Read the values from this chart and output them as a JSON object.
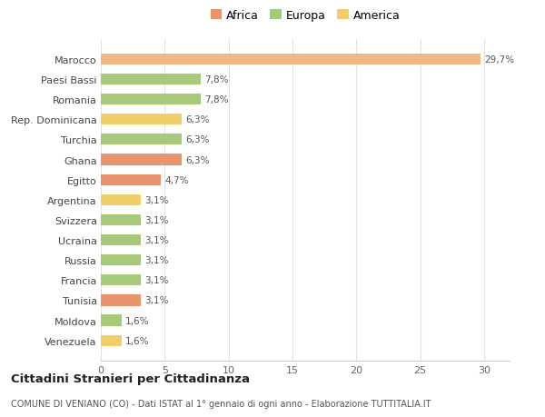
{
  "categories": [
    "Venezuela",
    "Moldova",
    "Tunisia",
    "Francia",
    "Russia",
    "Ucraina",
    "Svizzera",
    "Argentina",
    "Egitto",
    "Ghana",
    "Turchia",
    "Rep. Dominicana",
    "Romania",
    "Paesi Bassi",
    "Marocco"
  ],
  "values": [
    1.6,
    1.6,
    3.1,
    3.1,
    3.1,
    3.1,
    3.1,
    3.1,
    4.7,
    6.3,
    6.3,
    6.3,
    7.8,
    7.8,
    29.7
  ],
  "colors": [
    "#f0ce6a",
    "#a8c87a",
    "#e8956d",
    "#a8c87a",
    "#a8c87a",
    "#a8c87a",
    "#a8c87a",
    "#f0ce6a",
    "#e8956d",
    "#e8956d",
    "#a8c87a",
    "#f0ce6a",
    "#a8c87a",
    "#a8c87a",
    "#f0b882"
  ],
  "labels": [
    "1,6%",
    "1,6%",
    "3,1%",
    "3,1%",
    "3,1%",
    "3,1%",
    "3,1%",
    "3,1%",
    "4,7%",
    "6,3%",
    "6,3%",
    "6,3%",
    "7,8%",
    "7,8%",
    "29,7%"
  ],
  "legend": [
    {
      "label": "Africa",
      "color": "#e8956d"
    },
    {
      "label": "Europa",
      "color": "#a8c87a"
    },
    {
      "label": "America",
      "color": "#f0ce6a"
    }
  ],
  "xlim": [
    0,
    32
  ],
  "xticks": [
    0,
    5,
    10,
    15,
    20,
    25,
    30
  ],
  "title": "Cittadini Stranieri per Cittadinanza",
  "subtitle": "COMUNE DI VENIANO (CO) - Dati ISTAT al 1° gennaio di ogni anno - Elaborazione TUTTITALIA.IT",
  "bg_color": "#ffffff",
  "bar_height": 0.55,
  "grid_color": "#e0e0e0"
}
